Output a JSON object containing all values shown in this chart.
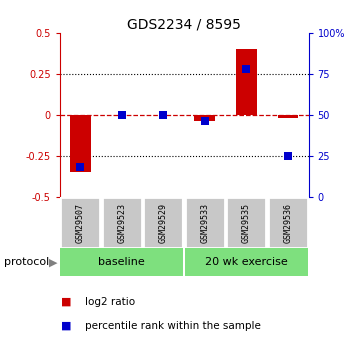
{
  "title": "GDS2234 / 8595",
  "samples": [
    "GSM29507",
    "GSM29523",
    "GSM29529",
    "GSM29533",
    "GSM29535",
    "GSM29536"
  ],
  "log2_ratio": [
    -0.35,
    0.0,
    0.0,
    -0.04,
    0.4,
    -0.02
  ],
  "percentile_rank": [
    18,
    50,
    50,
    46,
    78,
    25
  ],
  "ylim_left": [
    -0.5,
    0.5
  ],
  "ylim_right": [
    0,
    100
  ],
  "yticks_left": [
    -0.5,
    -0.25,
    0.0,
    0.25,
    0.5
  ],
  "ytick_labels_left": [
    "-0.5",
    "-0.25",
    "0",
    "0.25",
    "0.5"
  ],
  "yticks_right": [
    0,
    25,
    50,
    75,
    100
  ],
  "ytick_labels_right": [
    "0",
    "25",
    "50",
    "75",
    "100%"
  ],
  "bar_color": "#CC0000",
  "dot_color": "#0000CC",
  "legend_bar": "log2 ratio",
  "legend_dot": "percentile rank within the sample",
  "bar_width": 0.5,
  "dot_size": 40,
  "group1_label": "baseline",
  "group2_label": "20 wk exercise",
  "group_color": "#7EE07E",
  "protocol_label": "protocol"
}
